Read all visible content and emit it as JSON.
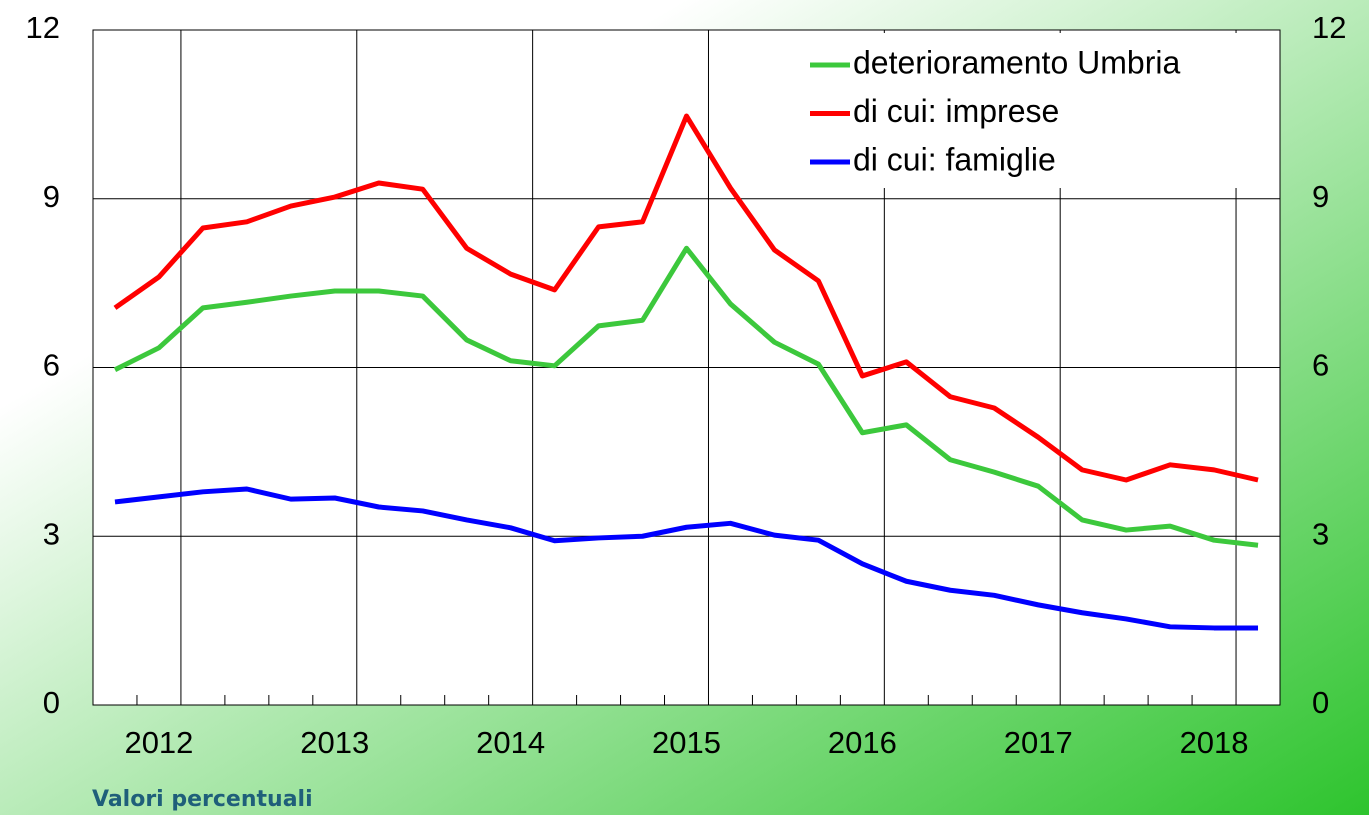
{
  "chart_data": {
    "type": "line",
    "categories": [
      null,
      "2012",
      null,
      null,
      null,
      "2013",
      null,
      null,
      null,
      "2014",
      null,
      null,
      null,
      "2015",
      null,
      null,
      null,
      "2016",
      null,
      null,
      null,
      "2017",
      null,
      null,
      null,
      "2018",
      null
    ],
    "series": [
      {
        "name": "deterioramento Umbria",
        "color": "#3cc83c",
        "values": [
          5.96,
          6.35,
          7.06,
          7.16,
          7.27,
          7.36,
          7.36,
          7.27,
          6.49,
          6.12,
          6.03,
          6.74,
          6.84,
          8.12,
          7.13,
          6.45,
          6.06,
          4.84,
          4.98,
          4.36,
          4.14,
          3.89,
          3.29,
          3.11,
          3.18,
          2.93,
          2.84
        ]
      },
      {
        "name": "di cui: imprese",
        "color": "#ff0000",
        "values": [
          7.06,
          7.61,
          8.48,
          8.59,
          8.87,
          9.03,
          9.28,
          9.17,
          8.12,
          7.66,
          7.38,
          8.5,
          8.59,
          10.47,
          9.19,
          8.09,
          7.54,
          5.85,
          6.1,
          5.48,
          5.28,
          4.76,
          4.18,
          4.0,
          4.27,
          4.18,
          4.0
        ]
      },
      {
        "name": "di cui: famiglie",
        "color": "#0000ff",
        "values": [
          3.61,
          3.7,
          3.79,
          3.84,
          3.66,
          3.68,
          3.52,
          3.45,
          3.29,
          3.15,
          2.92,
          2.97,
          3.0,
          3.16,
          3.23,
          3.02,
          2.93,
          2.51,
          2.2,
          2.04,
          1.95,
          1.78,
          1.64,
          1.53,
          1.39,
          1.37,
          1.37
        ]
      }
    ],
    "ylim": [
      0,
      12
    ],
    "yticks": [
      0,
      3,
      6,
      9,
      12
    ],
    "y2lim": [
      0,
      12
    ],
    "y2ticks": [
      0,
      3,
      6,
      9,
      12
    ],
    "grid": true,
    "legend": "top-right",
    "caption": "Valori percentuali"
  }
}
